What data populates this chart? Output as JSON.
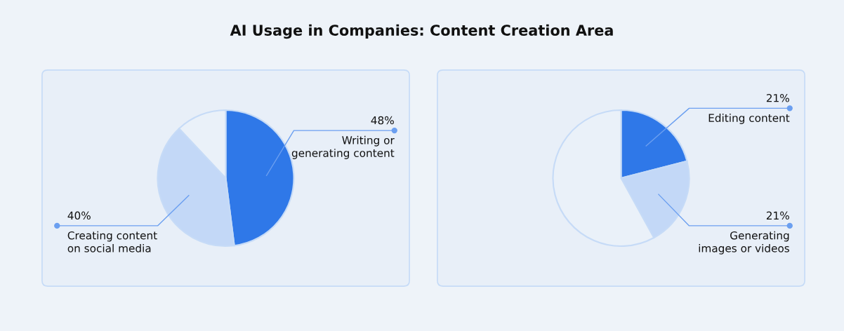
{
  "chart_data": [
    {
      "type": "pie",
      "title": "AI Usage in Companies: Content Creation Area",
      "categories": [
        "Writing or\ngenerating content",
        "Creating content\non social media",
        null
      ],
      "values": [
        48,
        40,
        12
      ],
      "value_labels": [
        "48%",
        "40%",
        null
      ],
      "colors": [
        "#2f78e8",
        "#c3d8f7",
        "#eaf1f9"
      ]
    },
    {
      "type": "pie",
      "categories": [
        "Editing content",
        "Generating\nimages or videos",
        null
      ],
      "values": [
        21,
        21,
        58
      ],
      "value_labels": [
        "21%",
        "21%",
        null
      ],
      "colors": [
        "#2f78e8",
        "#c3d8f7",
        "#eaf1f9"
      ]
    }
  ]
}
